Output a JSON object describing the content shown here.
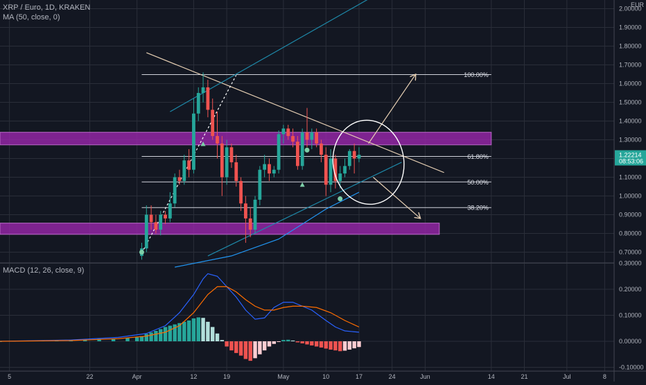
{
  "header": {
    "symbol_line": "XRP / Euro, 1D, KRAKEN",
    "ma_line": "MA (50, close, 0)",
    "macd_line": "MACD (12, 26, close, 9)",
    "currency": "EUR"
  },
  "price_badge": {
    "price": "1.22214",
    "countdown": "08:53:06"
  },
  "colors": {
    "background": "#131722",
    "grid": "#2a2e39",
    "up_candle": "#26a69a",
    "down_candle": "#ef5350",
    "macd_line": "#2962ff",
    "signal_line": "#ff6d00",
    "zone": "#9c27b0",
    "trendline": "#e6cfb3",
    "channel": "#1e88a8",
    "level_line": "#d1d4dc"
  },
  "chart_data": [
    {
      "type": "candlestick",
      "title": "XRP / Euro, 1D, KRAKEN",
      "ylabel": "EUR",
      "ylim": [
        0.68,
        2.04
      ],
      "y_ticks": [
        "2.00000",
        "1.90000",
        "1.80000",
        "1.70000",
        "1.60000",
        "1.50000",
        "1.40000",
        "1.30000",
        "1.20000",
        "1.10000",
        "1.00000",
        "0.90000",
        "0.80000",
        "0.70000"
      ],
      "x_ticks": [
        "5",
        "22",
        "Apr",
        "12",
        "19",
        "May",
        "10",
        "17",
        "24",
        "Jun",
        "14",
        "21",
        "Jul",
        "8"
      ],
      "x_tick_days": [
        -27,
        -10,
        0,
        12,
        19,
        31,
        40,
        47,
        54,
        61,
        75,
        82,
        91,
        99
      ],
      "x_range_days": [
        -29,
        101
      ],
      "candles": [
        {
          "day": 1,
          "o": 0.68,
          "h": 0.75,
          "l": 0.66,
          "c": 0.72
        },
        {
          "day": 2,
          "o": 0.72,
          "h": 0.95,
          "l": 0.7,
          "c": 0.9
        },
        {
          "day": 3,
          "o": 0.9,
          "h": 0.95,
          "l": 0.82,
          "c": 0.86
        },
        {
          "day": 4,
          "o": 0.86,
          "h": 0.9,
          "l": 0.8,
          "c": 0.82
        },
        {
          "day": 5,
          "o": 0.82,
          "h": 0.92,
          "l": 0.79,
          "c": 0.9
        },
        {
          "day": 6,
          "o": 0.9,
          "h": 0.92,
          "l": 0.85,
          "c": 0.88
        },
        {
          "day": 7,
          "o": 0.88,
          "h": 1.02,
          "l": 0.86,
          "c": 0.96
        },
        {
          "day": 8,
          "o": 0.96,
          "h": 1.12,
          "l": 0.94,
          "c": 1.1
        },
        {
          "day": 9,
          "o": 1.1,
          "h": 1.14,
          "l": 1.06,
          "c": 1.08
        },
        {
          "day": 10,
          "o": 1.08,
          "h": 1.22,
          "l": 1.06,
          "c": 1.19
        },
        {
          "day": 11,
          "o": 1.19,
          "h": 1.25,
          "l": 1.1,
          "c": 1.14
        },
        {
          "day": 12,
          "o": 1.14,
          "h": 1.52,
          "l": 1.12,
          "c": 1.44
        },
        {
          "day": 13,
          "o": 1.44,
          "h": 1.58,
          "l": 1.4,
          "c": 1.55
        },
        {
          "day": 14,
          "o": 1.55,
          "h": 1.66,
          "l": 1.5,
          "c": 1.58
        },
        {
          "day": 15,
          "o": 1.58,
          "h": 1.62,
          "l": 1.42,
          "c": 1.46
        },
        {
          "day": 16,
          "o": 1.46,
          "h": 1.52,
          "l": 1.3,
          "c": 1.32
        },
        {
          "day": 17,
          "o": 1.32,
          "h": 1.45,
          "l": 1.2,
          "c": 1.28
        },
        {
          "day": 18,
          "o": 1.28,
          "h": 1.32,
          "l": 1.0,
          "c": 1.1
        },
        {
          "day": 19,
          "o": 1.1,
          "h": 1.3,
          "l": 1.06,
          "c": 1.26
        },
        {
          "day": 20,
          "o": 1.26,
          "h": 1.28,
          "l": 1.15,
          "c": 1.18
        },
        {
          "day": 21,
          "o": 1.18,
          "h": 1.22,
          "l": 1.05,
          "c": 1.08
        },
        {
          "day": 22,
          "o": 1.08,
          "h": 1.1,
          "l": 0.92,
          "c": 0.96
        },
        {
          "day": 23,
          "o": 0.96,
          "h": 1.0,
          "l": 0.75,
          "c": 0.88
        },
        {
          "day": 24,
          "o": 0.88,
          "h": 0.94,
          "l": 0.78,
          "c": 0.82
        },
        {
          "day": 25,
          "o": 0.82,
          "h": 1.0,
          "l": 0.8,
          "c": 0.98
        },
        {
          "day": 26,
          "o": 0.98,
          "h": 1.16,
          "l": 0.95,
          "c": 1.14
        },
        {
          "day": 27,
          "o": 1.14,
          "h": 1.22,
          "l": 1.1,
          "c": 1.17
        },
        {
          "day": 28,
          "o": 1.17,
          "h": 1.2,
          "l": 1.08,
          "c": 1.12
        },
        {
          "day": 29,
          "o": 1.12,
          "h": 1.16,
          "l": 1.1,
          "c": 1.14
        },
        {
          "day": 30,
          "o": 1.14,
          "h": 1.35,
          "l": 1.12,
          "c": 1.33
        },
        {
          "day": 31,
          "o": 1.33,
          "h": 1.38,
          "l": 1.28,
          "c": 1.36
        },
        {
          "day": 32,
          "o": 1.36,
          "h": 1.38,
          "l": 1.3,
          "c": 1.32
        },
        {
          "day": 33,
          "o": 1.32,
          "h": 1.36,
          "l": 1.26,
          "c": 1.29
        },
        {
          "day": 34,
          "o": 1.29,
          "h": 1.32,
          "l": 1.14,
          "c": 1.16
        },
        {
          "day": 35,
          "o": 1.16,
          "h": 1.36,
          "l": 1.14,
          "c": 1.34
        },
        {
          "day": 36,
          "o": 1.34,
          "h": 1.47,
          "l": 1.26,
          "c": 1.3
        },
        {
          "day": 37,
          "o": 1.3,
          "h": 1.36,
          "l": 1.25,
          "c": 1.34
        },
        {
          "day": 38,
          "o": 1.34,
          "h": 1.36,
          "l": 1.26,
          "c": 1.28
        },
        {
          "day": 39,
          "o": 1.28,
          "h": 1.3,
          "l": 1.18,
          "c": 1.22
        },
        {
          "day": 40,
          "o": 1.22,
          "h": 1.26,
          "l": 1.0,
          "c": 1.06
        },
        {
          "day": 41,
          "o": 1.06,
          "h": 1.25,
          "l": 1.02,
          "c": 1.2
        },
        {
          "day": 42,
          "o": 1.2,
          "h": 1.22,
          "l": 1.04,
          "c": 1.08
        },
        {
          "day": 43,
          "o": 1.08,
          "h": 1.16,
          "l": 1.04,
          "c": 1.12
        },
        {
          "day": 44,
          "o": 1.12,
          "h": 1.2,
          "l": 1.1,
          "c": 1.16
        },
        {
          "day": 45,
          "o": 1.16,
          "h": 1.25,
          "l": 1.14,
          "c": 1.24
        },
        {
          "day": 46,
          "o": 1.24,
          "h": 1.28,
          "l": 1.12,
          "c": 1.2
        },
        {
          "day": 47,
          "o": 1.2,
          "h": 1.26,
          "l": 1.18,
          "c": 1.22
        }
      ],
      "moving_average": {
        "name": "MA (50, close, 0)",
        "points": [
          [
            8,
            0.62
          ],
          [
            20,
            0.68
          ],
          [
            30,
            0.77
          ],
          [
            40,
            0.93
          ],
          [
            47,
            1.02
          ]
        ]
      },
      "fib_levels": [
        {
          "label": "100.00%",
          "value": 1.648
        },
        {
          "label": "61.80%",
          "value": 1.211
        },
        {
          "label": "50.00%",
          "value": 1.075
        },
        {
          "label": "38.20%",
          "value": 0.938
        }
      ],
      "zones": [
        {
          "from": 1.273,
          "to": 1.34,
          "day_start": -29,
          "day_end": 75
        },
        {
          "from": 0.795,
          "to": 0.855,
          "day_start": -29,
          "day_end": 64
        }
      ],
      "trendlines": [
        {
          "style": "solid",
          "role": "descending",
          "from": [
            2,
            1.765
          ],
          "to": [
            65,
            1.125
          ]
        },
        {
          "style": "dashed",
          "role": "diagonal",
          "from": [
            1,
            0.695
          ],
          "to": [
            21,
            1.645
          ]
        },
        {
          "style": "solid",
          "role": "channel-top",
          "from": [
            7,
            1.45
          ],
          "to": [
            51,
            2.08
          ]
        },
        {
          "style": "solid",
          "role": "channel-bottom",
          "from": [
            15,
            0.68
          ],
          "to": [
            56,
            1.18
          ]
        },
        {
          "style": "arrow",
          "role": "bullish-arrow",
          "from": [
            49,
            1.28
          ],
          "to": [
            59,
            1.65
          ]
        },
        {
          "style": "arrow",
          "role": "bearish-arrow",
          "from": [
            50,
            1.1
          ],
          "to": [
            60,
            0.88
          ]
        }
      ],
      "ellipse": {
        "center": [
          49,
          1.18
        ],
        "radius_days": 7.5,
        "radius_price": 0.225
      },
      "markers": [
        {
          "day": 1,
          "value": 0.7,
          "shape": "circle"
        },
        {
          "day": 14,
          "value": 1.278,
          "shape": "triangle"
        },
        {
          "day": 35,
          "value": 1.06,
          "shape": "triangle"
        },
        {
          "day": 36,
          "value": 1.245,
          "shape": "circle"
        },
        {
          "day": 43,
          "value": 0.985,
          "shape": "circle"
        }
      ]
    },
    {
      "type": "macd",
      "title": "MACD (12, 26, close, 9)",
      "ylim": [
        -0.105,
        0.315
      ],
      "y_ticks": [
        "0.30000",
        "0.20000",
        "0.10000",
        "0.00000",
        "-0.10000"
      ],
      "macd_line": [
        [
          -29,
          0.0
        ],
        [
          -14,
          0.005
        ],
        [
          -4,
          0.015
        ],
        [
          2,
          0.03
        ],
        [
          6,
          0.06
        ],
        [
          9,
          0.11
        ],
        [
          12,
          0.18
        ],
        [
          14,
          0.24
        ],
        [
          15,
          0.26
        ],
        [
          17,
          0.25
        ],
        [
          19,
          0.21
        ],
        [
          21,
          0.17
        ],
        [
          23,
          0.12
        ],
        [
          25,
          0.085
        ],
        [
          27,
          0.09
        ],
        [
          29,
          0.13
        ],
        [
          31,
          0.15
        ],
        [
          33,
          0.15
        ],
        [
          35,
          0.135
        ],
        [
          37,
          0.12
        ],
        [
          40,
          0.08
        ],
        [
          42,
          0.055
        ],
        [
          44,
          0.04
        ],
        [
          47,
          0.035
        ]
      ],
      "signal_line": [
        [
          -29,
          0.0
        ],
        [
          -14,
          0.003
        ],
        [
          -4,
          0.01
        ],
        [
          2,
          0.02
        ],
        [
          6,
          0.035
        ],
        [
          9,
          0.06
        ],
        [
          12,
          0.11
        ],
        [
          15,
          0.18
        ],
        [
          17,
          0.21
        ],
        [
          19,
          0.21
        ],
        [
          21,
          0.19
        ],
        [
          23,
          0.16
        ],
        [
          25,
          0.135
        ],
        [
          27,
          0.12
        ],
        [
          29,
          0.12
        ],
        [
          31,
          0.13
        ],
        [
          33,
          0.135
        ],
        [
          35,
          0.135
        ],
        [
          38,
          0.13
        ],
        [
          41,
          0.11
        ],
        [
          44,
          0.08
        ],
        [
          47,
          0.055
        ]
      ],
      "histogram": [
        [
          -29,
          0.0
        ],
        [
          -26,
          0.002
        ],
        [
          -23,
          0.003
        ],
        [
          -20,
          0.004
        ],
        [
          -17,
          0.005
        ],
        [
          -14,
          0.006
        ],
        [
          -11,
          0.008
        ],
        [
          -8,
          0.009
        ],
        [
          -5,
          0.009
        ],
        [
          -2,
          0.012
        ],
        [
          0,
          0.015
        ],
        [
          1,
          0.02
        ],
        [
          2,
          0.028
        ],
        [
          3,
          0.034
        ],
        [
          4,
          0.04
        ],
        [
          5,
          0.047
        ],
        [
          6,
          0.055
        ],
        [
          7,
          0.06
        ],
        [
          8,
          0.065
        ],
        [
          9,
          0.07
        ],
        [
          10,
          0.075
        ],
        [
          11,
          0.08
        ],
        [
          12,
          0.088
        ],
        [
          13,
          0.092
        ],
        [
          14,
          0.09
        ],
        [
          15,
          0.075
        ],
        [
          16,
          0.055
        ],
        [
          17,
          0.03
        ],
        [
          18,
          0.005
        ],
        [
          19,
          -0.02
        ],
        [
          20,
          -0.035
        ],
        [
          21,
          -0.045
        ],
        [
          22,
          -0.055
        ],
        [
          23,
          -0.068
        ],
        [
          24,
          -0.075
        ],
        [
          25,
          -0.065
        ],
        [
          26,
          -0.05
        ],
        [
          27,
          -0.035
        ],
        [
          28,
          -0.02
        ],
        [
          29,
          -0.01
        ],
        [
          30,
          -0.002
        ],
        [
          31,
          0.005
        ],
        [
          32,
          0.006
        ],
        [
          33,
          0.003
        ],
        [
          34,
          -0.004
        ],
        [
          35,
          -0.008
        ],
        [
          36,
          -0.012
        ],
        [
          37,
          -0.016
        ],
        [
          38,
          -0.02
        ],
        [
          39,
          -0.024
        ],
        [
          40,
          -0.028
        ],
        [
          41,
          -0.032
        ],
        [
          42,
          -0.035
        ],
        [
          43,
          -0.038
        ],
        [
          44,
          -0.036
        ],
        [
          45,
          -0.032
        ],
        [
          46,
          -0.027
        ],
        [
          47,
          -0.022
        ]
      ]
    }
  ]
}
